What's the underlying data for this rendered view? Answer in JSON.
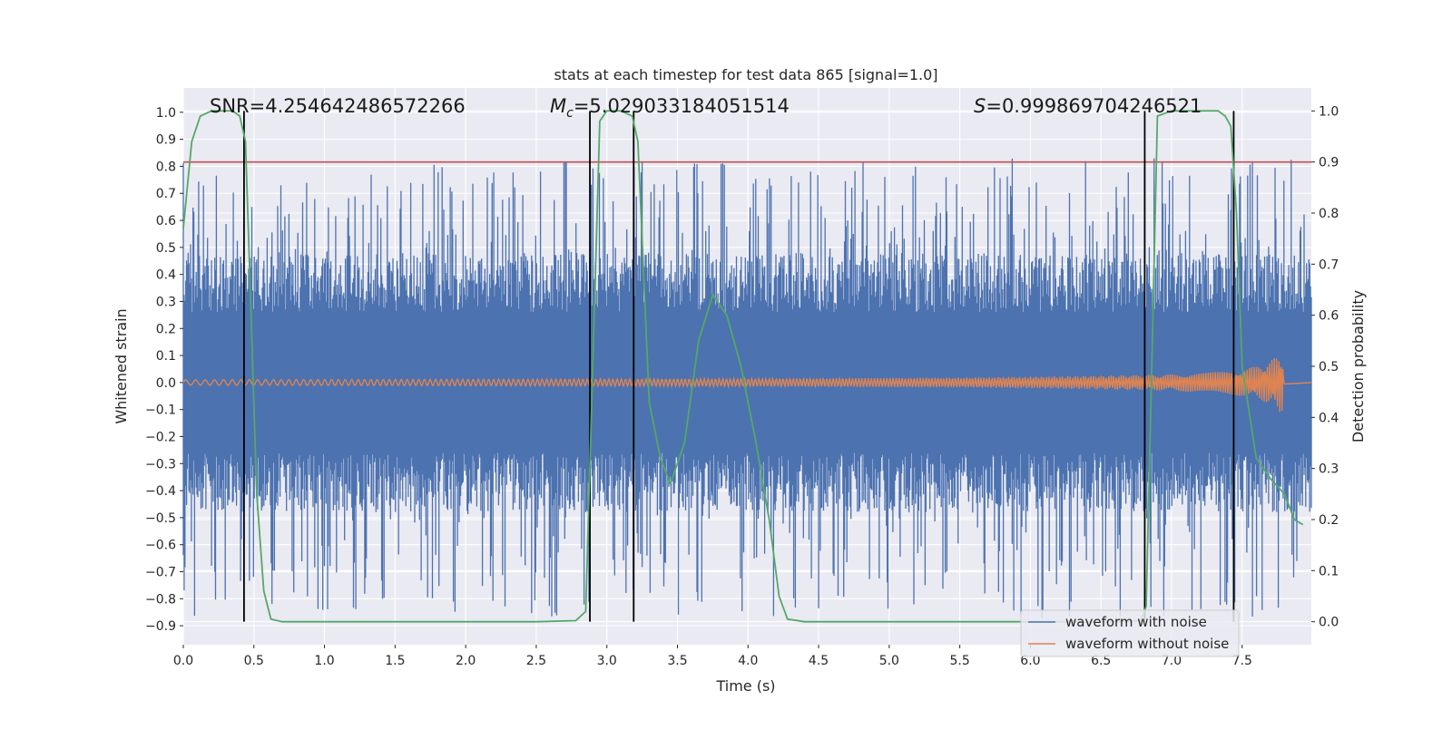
{
  "chart_data": {
    "type": "line",
    "title": "stats at each timestep for test data 865 [signal=1.0]",
    "xlabel": "Time (s)",
    "ylabel": "Whitened strain",
    "ylabel_right": "Detection probability",
    "xlim": [
      0.0,
      7.99
    ],
    "ylim": [
      -0.97,
      1.09
    ],
    "ylim_right": [
      -0.045,
      1.045
    ],
    "xticks": [
      "0.0",
      "0.5",
      "1.0",
      "1.5",
      "2.0",
      "2.5",
      "3.0",
      "3.5",
      "4.0",
      "4.5",
      "5.0",
      "5.5",
      "6.0",
      "6.5",
      "7.0",
      "7.5"
    ],
    "yticks": [
      "1.0",
      "0.9",
      "0.8",
      "0.7",
      "0.6",
      "0.5",
      "0.4",
      "0.3",
      "0.2",
      "0.1",
      "0.0",
      "−0.1",
      "−0.2",
      "−0.3",
      "−0.4",
      "−0.5",
      "−0.6",
      "−0.7",
      "−0.8",
      "−0.9"
    ],
    "yticks_right": [
      "1.0",
      "0.9",
      "0.8",
      "0.7",
      "0.6",
      "0.5",
      "0.4",
      "0.3",
      "0.2",
      "0.1",
      "0.0"
    ],
    "annotations": {
      "snr": "SNR=4.254642486572266",
      "mc_prefix": "M",
      "mc_sub": "c",
      "mc_value": "=5.029033184051514",
      "s_prefix": "S",
      "s_value": "=0.999869704246521"
    },
    "series": [
      {
        "name": "waveform with noise",
        "color": "#4c72b0",
        "style": "dense noise, roughly ±0.4 band with spikes to about ±0.9"
      },
      {
        "name": "waveform without noise",
        "color": "#dd8452",
        "envelope": {
          "t": [
            0.0,
            2.0,
            4.0,
            5.5,
            6.5,
            7.0,
            7.3,
            7.5,
            7.6,
            7.7,
            7.75,
            7.78,
            7.8
          ],
          "amp": [
            0.01,
            0.012,
            0.014,
            0.018,
            0.025,
            0.03,
            0.04,
            0.05,
            0.06,
            0.08,
            0.1,
            0.12,
            0.0
          ]
        }
      },
      {
        "name": "detection probability",
        "color": "#55a868",
        "axis": "right",
        "x": [
          0.0,
          0.06,
          0.12,
          0.2,
          0.28,
          0.35,
          0.4,
          0.44,
          0.48,
          0.52,
          0.57,
          0.62,
          0.7,
          0.8,
          1.0,
          2.0,
          2.5,
          2.78,
          2.85,
          2.9,
          2.95,
          3.0,
          3.1,
          3.18,
          3.22,
          3.3,
          3.38,
          3.45,
          3.55,
          3.65,
          3.75,
          3.85,
          3.95,
          4.05,
          4.15,
          4.22,
          4.28,
          4.4,
          5.0,
          6.0,
          6.6,
          6.78,
          6.82,
          6.86,
          6.9,
          7.0,
          7.2,
          7.33,
          7.38,
          7.42,
          7.46,
          7.5,
          7.6,
          7.7,
          7.8,
          7.87,
          7.93
        ],
        "y": [
          0.77,
          0.94,
          0.99,
          1.0,
          1.0,
          1.0,
          0.99,
          0.94,
          0.6,
          0.25,
          0.06,
          0.005,
          0.0,
          0.0,
          0.0,
          0.0,
          0.0,
          0.002,
          0.02,
          0.5,
          0.98,
          1.0,
          1.0,
          0.99,
          0.94,
          0.43,
          0.32,
          0.27,
          0.35,
          0.55,
          0.64,
          0.6,
          0.5,
          0.36,
          0.2,
          0.05,
          0.005,
          0.0,
          0.0,
          0.0,
          0.0,
          0.002,
          0.03,
          0.5,
          0.99,
          1.0,
          1.0,
          1.0,
          0.99,
          0.97,
          0.8,
          0.5,
          0.32,
          0.28,
          0.25,
          0.2,
          0.19
        ]
      },
      {
        "name": "threshold",
        "color": "#c44e52",
        "axis": "right",
        "value": 0.9
      },
      {
        "name": "segment markers",
        "color": "#000000",
        "x": [
          0.43,
          2.88,
          3.19,
          6.81,
          7.44
        ]
      }
    ],
    "grid": true,
    "legend": {
      "position": "lower-right",
      "entries": [
        "waveform with noise",
        "waveform without noise"
      ]
    }
  }
}
